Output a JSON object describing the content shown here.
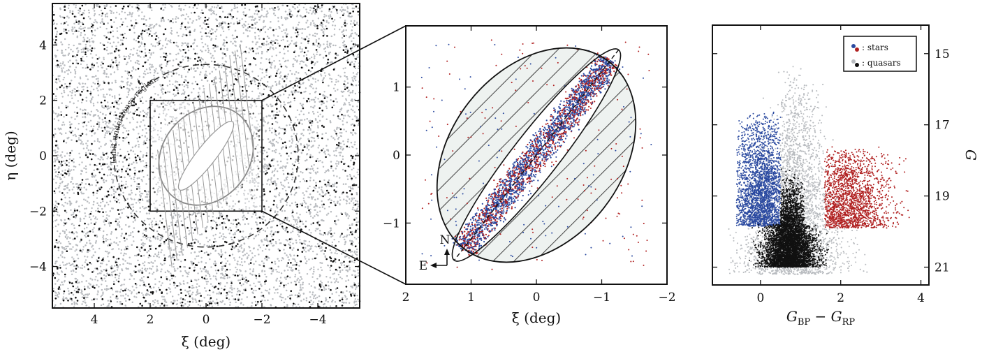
{
  "chart_data": [
    {
      "type": "scatter",
      "panel": "sky-wide",
      "xlabel": "ξ (deg)",
      "ylabel": "η (deg)",
      "xlim": [
        5.5,
        -5.5
      ],
      "ylim": [
        -5.5,
        5.5
      ],
      "xticks": [
        4,
        2,
        0,
        -2,
        -4
      ],
      "yticks": [
        -4,
        -2,
        0,
        2,
        4
      ],
      "xtick_labels": [
        "4",
        "2",
        "0",
        "−2",
        "−4"
      ],
      "ytick_labels": [
        "−4",
        "−2",
        "0",
        "2",
        "4"
      ],
      "series": [
        {
          "kind": "background points",
          "color": "#b9bcc0",
          "count_estimate": 9000
        },
        {
          "kind": "quasar points",
          "color": "#111111",
          "count_estimate": 1200
        }
      ],
      "annotations": {
        "limit_circle_label": "Limit underdense region",
        "limit_radius_deg": 3.3,
        "zoom_box": {
          "x": [
            2,
            -2
          ],
          "y": [
            -2,
            2
          ]
        },
        "ellipse": {
          "center": [
            0,
            0
          ],
          "semi_major_deg": 2.0,
          "semi_minor_deg": 1.25,
          "pa_deg": 38
        }
      }
    },
    {
      "type": "scatter",
      "panel": "zoom",
      "xlabel": "ξ (deg)",
      "xlim": [
        2,
        -2
      ],
      "ylim": [
        -1.9,
        1.9
      ],
      "xticks": [
        2,
        1,
        0,
        -1,
        -2
      ],
      "yticks": [
        -1,
        0,
        1
      ],
      "xtick_labels": [
        "2",
        "1",
        "0",
        "−1",
        "−2"
      ],
      "ytick_labels": [
        "−1",
        "0",
        "1"
      ],
      "series": [
        {
          "name": "",
          "color": "#2b4aa0",
          "kind": "blue stars"
        },
        {
          "name": "",
          "color": "#b02020",
          "kind": "red stars"
        }
      ],
      "compass": {
        "north": "N",
        "east": "E"
      },
      "outer_ellipse": {
        "center": [
          0,
          0
        ],
        "semi_major_deg": 2.0,
        "semi_minor_deg": 1.25,
        "pa_deg": 38
      },
      "inner_ellipse": {
        "center": [
          0,
          0
        ],
        "semi_major_deg": 1.65,
        "semi_minor_deg": 0.22,
        "pa_deg": 38
      }
    },
    {
      "type": "scatter",
      "panel": "cmd",
      "xlabel": "GBP − GRP",
      "ylabel": "G",
      "xlim": [
        -1.2,
        4.2
      ],
      "ylim": [
        21.5,
        14.2
      ],
      "xticks": [
        0,
        2,
        4
      ],
      "yticks": [
        15,
        17,
        19,
        21
      ],
      "xtick_labels": [
        "0",
        "2",
        "4"
      ],
      "ytick_labels": [
        "15",
        "17",
        "19",
        "21"
      ],
      "legend": {
        "placement": "top-right",
        "entries": [
          ": stars",
          ": quasars"
        ]
      },
      "series": [
        {
          "kind": "blue stars",
          "color": "#2b4aa0",
          "color_range": [
            -0.5,
            0.5
          ],
          "g_range": [
            16.2,
            19.9
          ]
        },
        {
          "kind": "red stars",
          "color": "#b02020",
          "color_range": [
            1.6,
            3.4
          ],
          "g_range": [
            17.5,
            19.9
          ]
        },
        {
          "kind": "background",
          "color": "#b9bcc0",
          "color_range": [
            -0.2,
            2.6
          ],
          "g_range": [
            15.0,
            21.2
          ]
        },
        {
          "kind": "quasars",
          "color": "#111111",
          "color_range": [
            0.0,
            1.5
          ],
          "g_range": [
            18.0,
            21.0
          ]
        }
      ]
    }
  ]
}
